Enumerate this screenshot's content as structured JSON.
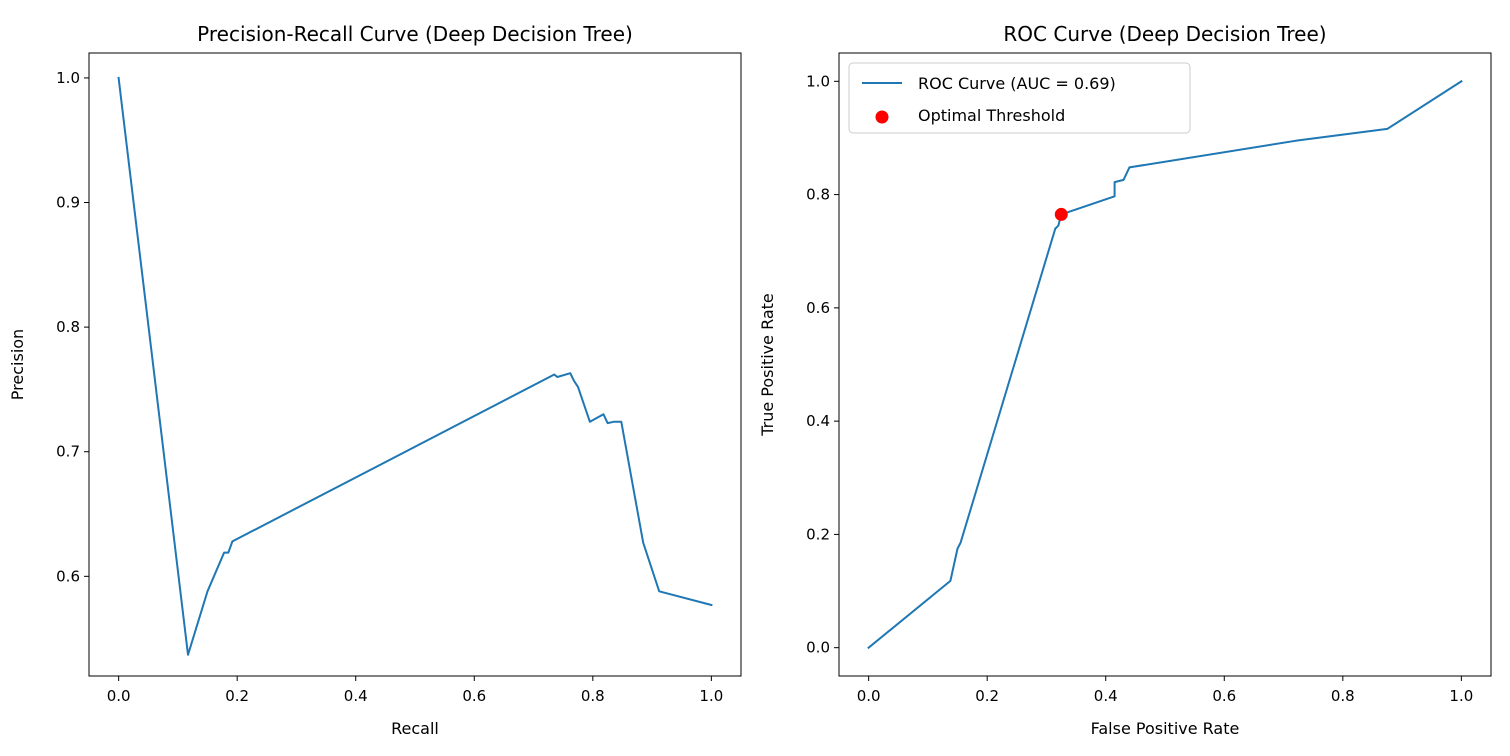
{
  "chart_data": [
    {
      "type": "line",
      "title": "Precision-Recall Curve (Deep Decision Tree)",
      "xlabel": "Recall",
      "ylabel": "Precision",
      "xlim": [
        -0.05,
        1.05
      ],
      "ylim": [
        0.52,
        1.02
      ],
      "xticks": [
        0.0,
        0.2,
        0.4,
        0.6,
        0.8,
        1.0
      ],
      "xtick_labels": [
        "0.0",
        "0.2",
        "0.4",
        "0.6",
        "0.8",
        "1.0"
      ],
      "yticks": [
        0.6,
        0.7,
        0.8,
        0.9,
        1.0
      ],
      "ytick_labels": [
        "0.6",
        "0.7",
        "0.8",
        "0.9",
        "1.0"
      ],
      "grid": false,
      "legend": null,
      "series": [
        {
          "color": "#1f77b4",
          "points": [
            [
              0.0,
              1.0
            ],
            [
              0.117,
              0.537
            ],
            [
              0.15,
              0.588
            ],
            [
              0.178,
              0.619
            ],
            [
              0.185,
              0.619
            ],
            [
              0.192,
              0.628
            ],
            [
              0.735,
              0.762
            ],
            [
              0.74,
              0.76
            ],
            [
              0.762,
              0.763
            ],
            [
              0.768,
              0.757
            ],
            [
              0.775,
              0.752
            ],
            [
              0.795,
              0.724
            ],
            [
              0.818,
              0.73
            ],
            [
              0.825,
              0.723
            ],
            [
              0.835,
              0.724
            ],
            [
              0.848,
              0.724
            ],
            [
              0.885,
              0.627
            ],
            [
              0.912,
              0.588
            ],
            [
              1.0,
              0.577
            ]
          ]
        }
      ]
    },
    {
      "type": "line",
      "title": "ROC Curve (Deep Decision Tree)",
      "xlabel": "False Positive Rate",
      "ylabel": "True Positive Rate",
      "xlim": [
        -0.05,
        1.05
      ],
      "ylim": [
        -0.05,
        1.05
      ],
      "xticks": [
        0.0,
        0.2,
        0.4,
        0.6,
        0.8,
        1.0
      ],
      "xtick_labels": [
        "0.0",
        "0.2",
        "0.4",
        "0.6",
        "0.8",
        "1.0"
      ],
      "yticks": [
        0.0,
        0.2,
        0.4,
        0.6,
        0.8,
        1.0
      ],
      "ytick_labels": [
        "0.0",
        "0.2",
        "0.4",
        "0.6",
        "0.8",
        "1.0"
      ],
      "grid": false,
      "legend": {
        "placement": "upper left",
        "entries": [
          {
            "label": "ROC Curve (AUC = 0.69)",
            "type": "line",
            "color": "#1f77b4"
          },
          {
            "label": "Optimal Threshold",
            "type": "marker",
            "color": "#ff0000"
          }
        ]
      },
      "series": [
        {
          "name": "ROC Curve (AUC = 0.69)",
          "color": "#1f77b4",
          "points": [
            [
              0.0,
              0.0
            ],
            [
              0.138,
              0.118
            ],
            [
              0.15,
              0.175
            ],
            [
              0.155,
              0.185
            ],
            [
              0.315,
              0.74
            ],
            [
              0.32,
              0.745
            ],
            [
              0.325,
              0.765
            ],
            [
              0.415,
              0.797
            ],
            [
              0.415,
              0.822
            ],
            [
              0.43,
              0.826
            ],
            [
              0.44,
              0.848
            ],
            [
              0.72,
              0.895
            ],
            [
              0.875,
              0.916
            ],
            [
              1.0,
              1.0
            ]
          ]
        }
      ],
      "markers": [
        {
          "name": "Optimal Threshold",
          "color": "#ff0000",
          "x": 0.325,
          "y": 0.765
        }
      ]
    }
  ]
}
